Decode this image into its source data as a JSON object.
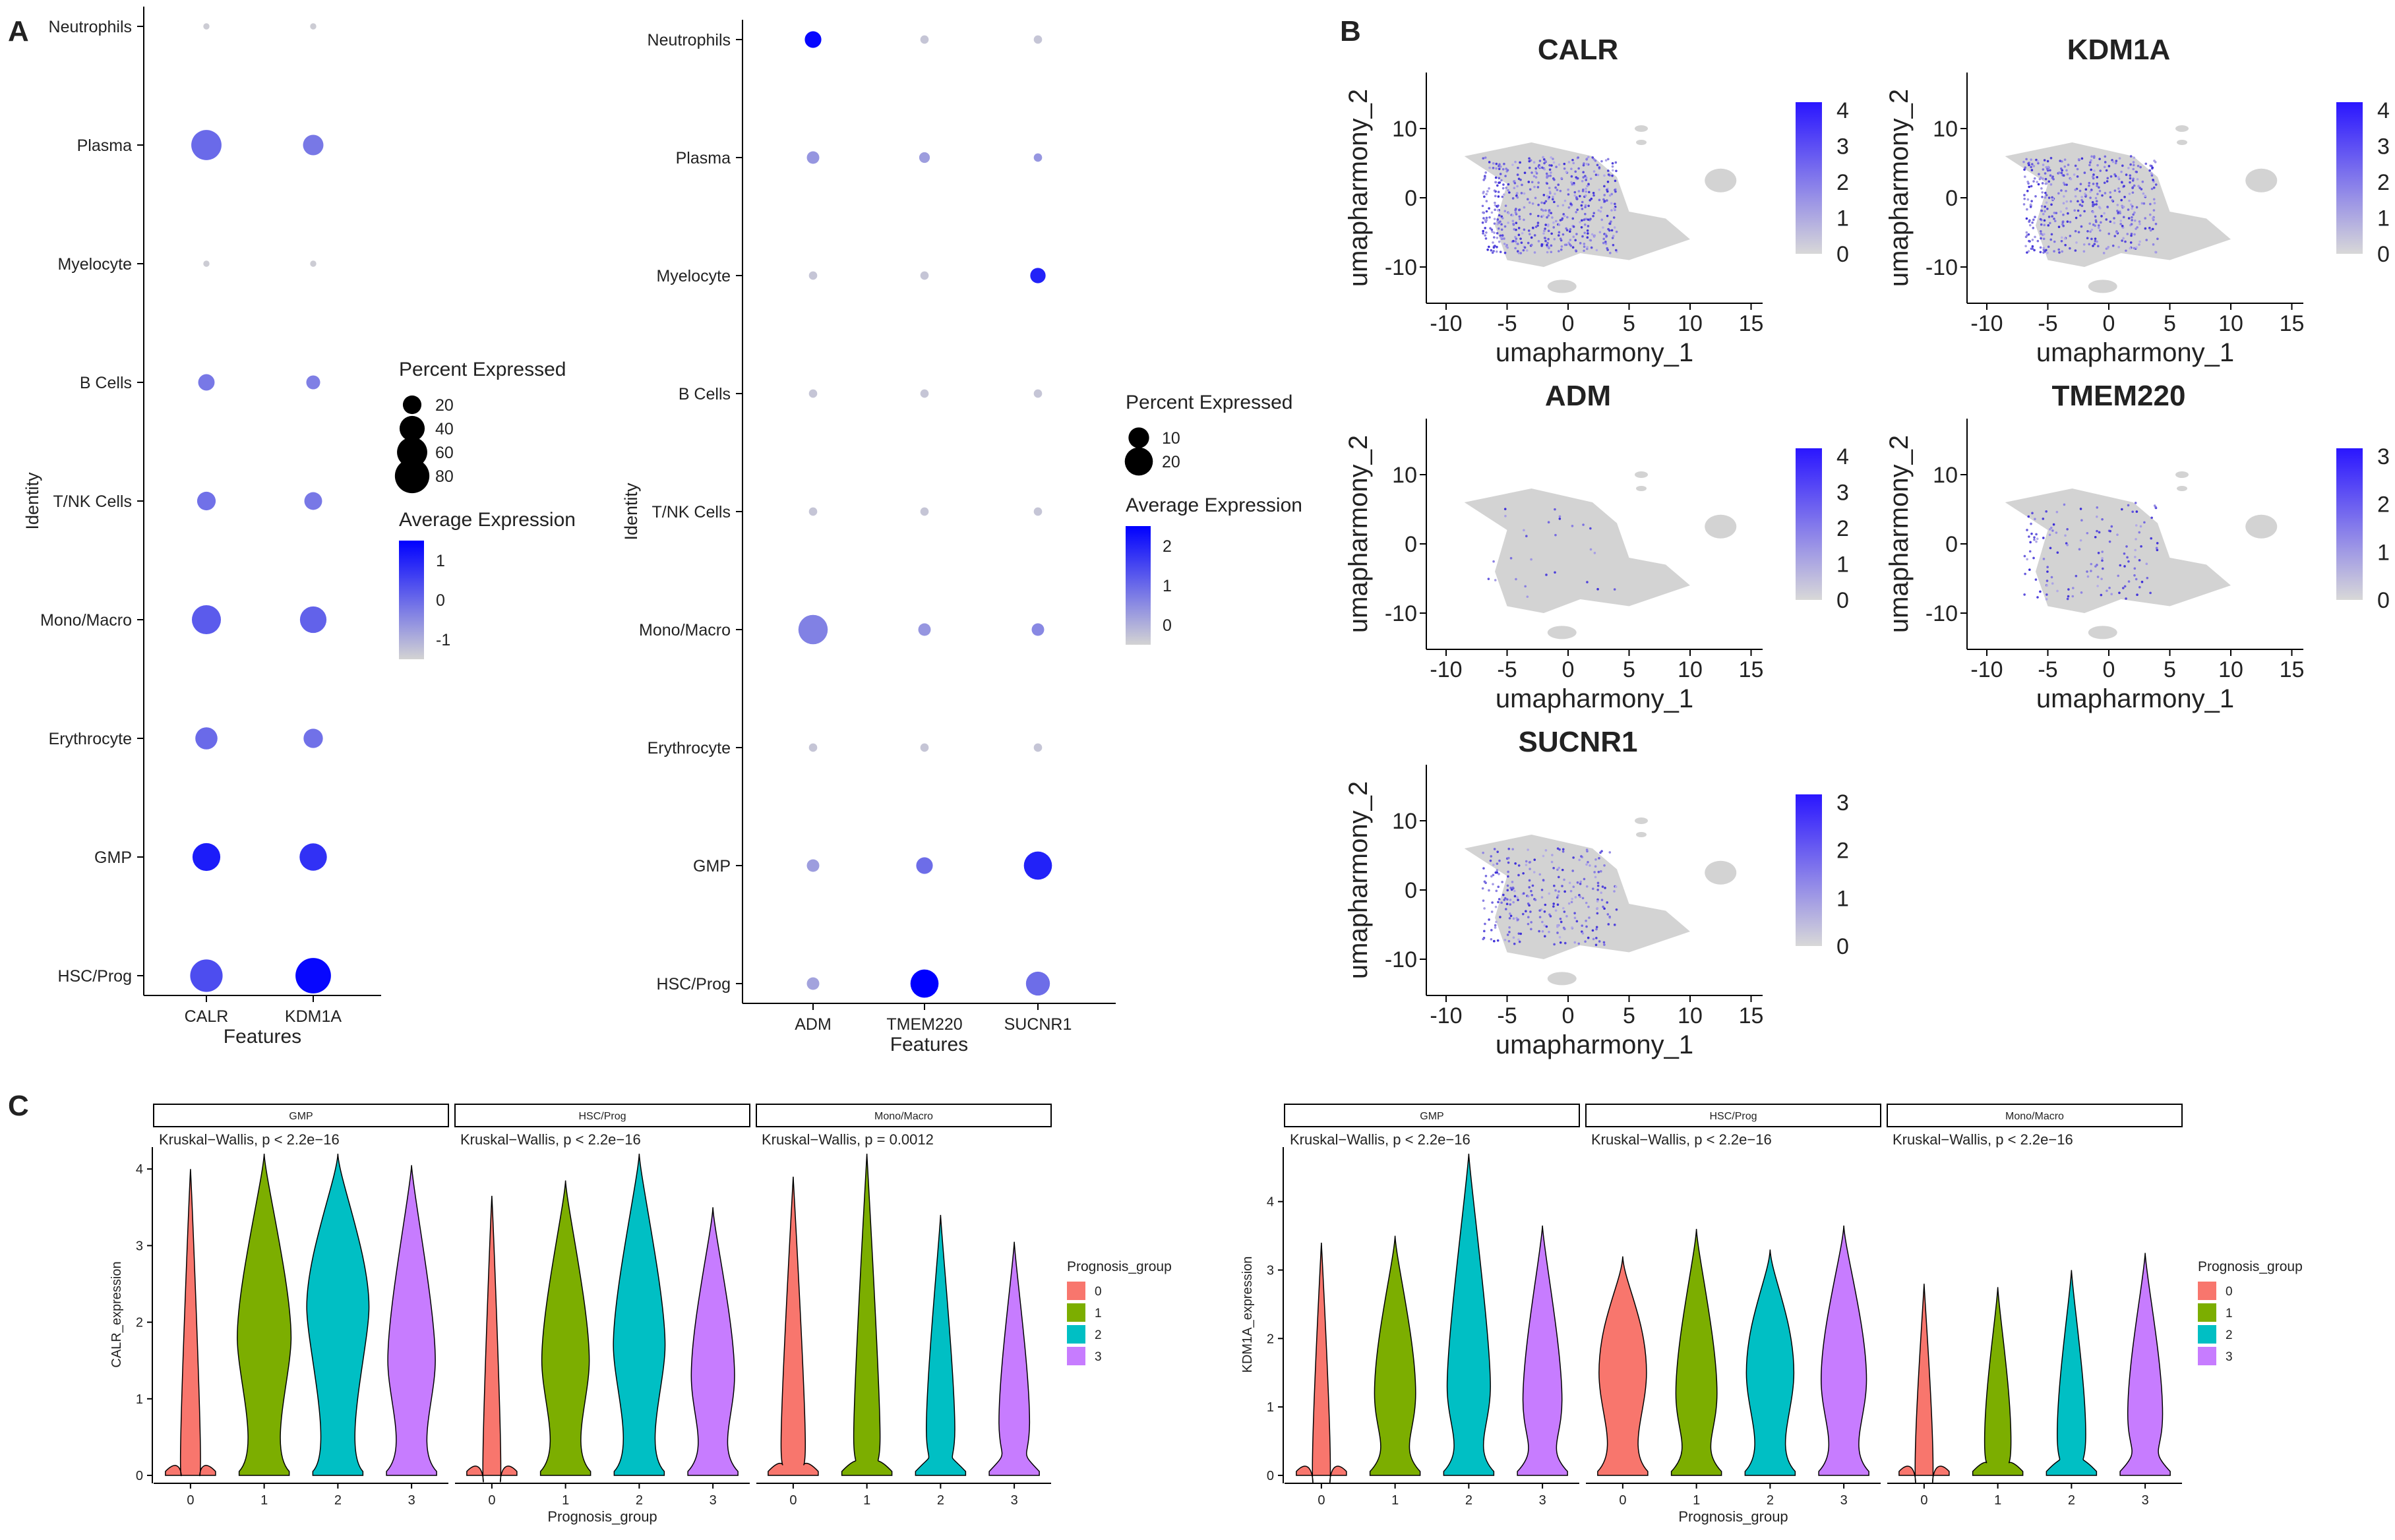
{
  "panels": {
    "a": "A",
    "b": "B",
    "c": "C"
  },
  "colors": {
    "dot_low": "#d3d3d3",
    "dot_high": "#0000ff",
    "ump_bg": "#d3d3d3",
    "ump_hi": "#3a2bd8"
  },
  "dotplots": [
    {
      "type": "dotplot",
      "ylabel": "Identity",
      "xlabel": "Features",
      "identities": [
        "Neutrophils",
        "Plasma",
        "Myelocyte",
        "B Cells",
        "T/NK Cells",
        "Mono/Macro",
        "Erythrocyte",
        "GMP",
        "HSC/Prog"
      ],
      "features": [
        "CALR",
        "KDM1A"
      ],
      "pct": [
        [
          1,
          1
        ],
        [
          60,
          25
        ],
        [
          1,
          1
        ],
        [
          15,
          10
        ],
        [
          20,
          18
        ],
        [
          55,
          45
        ],
        [
          30,
          22
        ],
        [
          50,
          48
        ],
        [
          70,
          85
        ]
      ],
      "avg": [
        [
          -1.2,
          -1.2
        ],
        [
          0.2,
          0.0
        ],
        [
          -1.2,
          -1.2
        ],
        [
          0.0,
          -0.1
        ],
        [
          0.1,
          0.0
        ],
        [
          0.4,
          0.3
        ],
        [
          0.2,
          0.1
        ],
        [
          1.3,
          1.0
        ],
        [
          0.6,
          1.6
        ]
      ],
      "avg_range": [
        -1.3,
        1.7
      ],
      "legend_size_title": "Percent Expressed",
      "legend_sizes": [
        "20",
        "40",
        "60",
        "80"
      ],
      "legend_color_title": "Average Expression",
      "legend_color_ticks": [
        "1",
        "0",
        "-1"
      ]
    },
    {
      "type": "dotplot",
      "ylabel": "Identity",
      "xlabel": "Features",
      "identities": [
        "Neutrophils",
        "Plasma",
        "Myelocyte",
        "B Cells",
        "T/NK Cells",
        "Mono/Macro",
        "Erythrocyte",
        "GMP",
        "HSC/Prog"
      ],
      "features": [
        "ADM",
        "TMEM220",
        "SUCNR1"
      ],
      "pct": [
        [
          6,
          1
        ],
        [
          3,
          2
        ],
        [
          1,
          1
        ],
        [
          1,
          1
        ],
        [
          1,
          1
        ],
        [
          22,
          3
        ],
        [
          1,
          1
        ],
        [
          3,
          6
        ],
        [
          3,
          20
        ]
      ],
      "avg": [
        [
          2.4,
          -0.4
        ],
        [
          0.3,
          0.2
        ],
        [
          -0.4,
          -0.4
        ],
        [
          -0.4,
          -0.4
        ],
        [
          -0.4,
          -0.4
        ],
        [
          0.6,
          0.3
        ],
        [
          -0.4,
          -0.4
        ],
        [
          0.2,
          0.9
        ],
        [
          0.1,
          2.5
        ]
      ],
      "avg3": [
        -0.4,
        0.3,
        2.0,
        -0.4,
        -0.4,
        0.5,
        -0.4,
        2.0,
        0.9
      ],
      "pct3": [
        1,
        1,
        5,
        1,
        1,
        3,
        1,
        20,
        14
      ],
      "avg_range": [
        -0.6,
        2.5
      ],
      "legend_size_title": "Percent Expressed",
      "legend_sizes": [
        "10",
        "20"
      ],
      "legend_color_title": "Average Expression",
      "legend_color_ticks": [
        "2",
        "1",
        "0"
      ]
    }
  ],
  "umaps": [
    {
      "title": "CALR",
      "scale": [
        "4",
        "3",
        "2",
        "1",
        "0"
      ],
      "density": 0.6
    },
    {
      "title": "KDM1A",
      "scale": [
        "4",
        "3",
        "2",
        "1",
        "0"
      ],
      "density": 0.5
    },
    {
      "title": "ADM",
      "scale": [
        "4",
        "3",
        "2",
        "1",
        "0"
      ],
      "density": 0.03
    },
    {
      "title": "TMEM220",
      "scale": [
        "3",
        "2",
        "1",
        "0"
      ],
      "density": 0.15
    },
    {
      "title": "SUCNR1",
      "scale": [
        "3",
        "2",
        "1",
        "0"
      ],
      "density": 0.3
    }
  ],
  "umap_axes": {
    "xlabel": "umapharmony_1",
    "ylabel": "umapharmony_2",
    "xticks": [
      "-10",
      "-5",
      "0",
      "5",
      "10",
      "15"
    ],
    "yticks": [
      "10",
      "0",
      "-10"
    ]
  },
  "chart_data": [
    {
      "type": "dotplot",
      "title": "",
      "xlabel": "Features",
      "ylabel": "Identity",
      "categories": [
        "Neutrophils",
        "Plasma",
        "Myelocyte",
        "B Cells",
        "T/NK Cells",
        "Mono/Macro",
        "Erythrocyte",
        "GMP",
        "HSC/Prog"
      ],
      "series": [
        {
          "name": "CALR",
          "percent_expressed": [
            1,
            60,
            1,
            15,
            20,
            55,
            30,
            50,
            70
          ],
          "average_expression": [
            -1.2,
            0.2,
            -1.2,
            0.0,
            0.1,
            0.4,
            0.2,
            1.3,
            0.6
          ]
        },
        {
          "name": "KDM1A",
          "percent_expressed": [
            1,
            25,
            1,
            10,
            18,
            45,
            22,
            48,
            85
          ],
          "average_expression": [
            -1.2,
            0.0,
            -1.2,
            -0.1,
            0.0,
            0.3,
            0.1,
            1.0,
            1.6
          ]
        }
      ]
    },
    {
      "type": "dotplot",
      "title": "",
      "xlabel": "Features",
      "ylabel": "Identity",
      "categories": [
        "Neutrophils",
        "Plasma",
        "Myelocyte",
        "B Cells",
        "T/NK Cells",
        "Mono/Macro",
        "Erythrocyte",
        "GMP",
        "HSC/Prog"
      ],
      "series": [
        {
          "name": "ADM",
          "percent_expressed": [
            6,
            3,
            1,
            1,
            1,
            22,
            1,
            3,
            3
          ],
          "average_expression": [
            2.4,
            0.3,
            -0.4,
            -0.4,
            -0.4,
            0.6,
            -0.4,
            0.2,
            0.1
          ]
        },
        {
          "name": "TMEM220",
          "percent_expressed": [
            1,
            2,
            1,
            1,
            1,
            3,
            1,
            6,
            20
          ],
          "average_expression": [
            -0.4,
            0.2,
            -0.4,
            -0.4,
            -0.4,
            0.3,
            -0.4,
            0.9,
            2.5
          ]
        },
        {
          "name": "SUCNR1",
          "percent_expressed": [
            1,
            1,
            5,
            1,
            1,
            3,
            1,
            20,
            14
          ],
          "average_expression": [
            -0.4,
            0.3,
            2.0,
            -0.4,
            -0.4,
            0.5,
            -0.4,
            2.0,
            0.9
          ]
        }
      ]
    },
    {
      "type": "violin",
      "ylabel": "CALR_expression",
      "xlabel": "Prognosis_group",
      "ylim": [
        0,
        4.2
      ],
      "yticks": [
        "0",
        "1",
        "2",
        "3",
        "4"
      ],
      "legend_title": "Prognosis_group",
      "groups": [
        "0",
        "1",
        "2",
        "3"
      ],
      "group_colors": [
        "#f8766d",
        "#7cae00",
        "#00bfc4",
        "#c77cff"
      ],
      "facets": [
        {
          "name": "GMP",
          "test": "Kruskal−Wallis, p < 2.2e−16",
          "max": [
            4.0,
            4.2,
            4.2,
            4.05
          ],
          "median": [
            0.2,
            1.8,
            2.2,
            1.5
          ]
        },
        {
          "name": "HSC/Prog",
          "test": "Kruskal−Wallis, p < 2.2e−16",
          "max": [
            3.65,
            3.85,
            4.2,
            3.5
          ],
          "median": [
            0.1,
            1.5,
            1.7,
            1.3
          ]
        },
        {
          "name": "Mono/Macro",
          "test": "Kruskal−Wallis, p = 0.0012",
          "max": [
            3.9,
            4.2,
            3.4,
            3.05
          ],
          "median": [
            0.4,
            0.5,
            0.6,
            0.7
          ]
        }
      ]
    },
    {
      "type": "violin",
      "ylabel": "KDM1A_expression",
      "xlabel": "Prognosis_group",
      "ylim": [
        0,
        4.7
      ],
      "yticks": [
        "0",
        "1",
        "2",
        "3",
        "4"
      ],
      "legend_title": "Prognosis_group",
      "groups": [
        "0",
        "1",
        "2",
        "3"
      ],
      "group_colors": [
        "#f8766d",
        "#7cae00",
        "#00bfc4",
        "#c77cff"
      ],
      "facets": [
        {
          "name": "GMP",
          "test": "Kruskal−Wallis, p < 2.2e−16",
          "max": [
            3.4,
            3.5,
            4.7,
            3.65
          ],
          "median": [
            0.1,
            1.2,
            1.3,
            1.1
          ]
        },
        {
          "name": "HSC/Prog",
          "test": "Kruskal−Wallis, p < 2.2e−16",
          "max": [
            3.2,
            3.6,
            3.3,
            3.65
          ],
          "median": [
            1.5,
            1.2,
            1.5,
            1.4
          ]
        },
        {
          "name": "Mono/Macro",
          "test": "Kruskal−Wallis, p < 2.2e−16",
          "max": [
            2.8,
            2.75,
            3.0,
            3.25
          ],
          "median": [
            0.1,
            0.5,
            0.6,
            0.9
          ]
        }
      ]
    }
  ]
}
